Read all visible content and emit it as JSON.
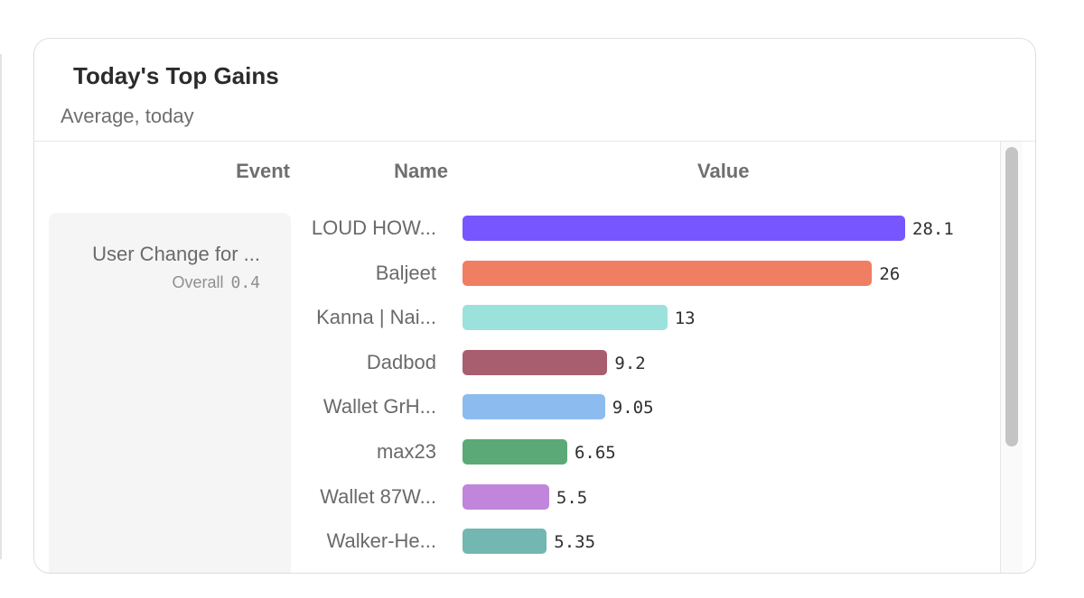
{
  "card": {
    "title": "Today's Top Gains",
    "subtitle": "Average, today"
  },
  "columns": {
    "event": "Event",
    "name": "Name",
    "value": "Value"
  },
  "event": {
    "label": "User Change for ...",
    "overall_label": "Overall",
    "overall_value": "0.4"
  },
  "chart_data": {
    "type": "bar",
    "orientation": "horizontal",
    "title": "Today's Top Gains",
    "subtitle": "Average, today",
    "categories": [
      "LOUD HOW...",
      "Baljeet",
      "Kanna | Nai...",
      "Dadbod",
      "Wallet GrH...",
      "max23",
      "Wallet 87W...",
      "Walker-He..."
    ],
    "values": [
      28.1,
      26,
      13,
      9.2,
      9.05,
      6.65,
      5.5,
      5.35
    ],
    "value_labels": [
      "28.1",
      "26",
      "13",
      "9.2",
      "9.05",
      "6.65",
      "5.5",
      "5.35"
    ],
    "colors": [
      "#7856ff",
      "#f07e62",
      "#9ce2dc",
      "#a85e6f",
      "#8cbcef",
      "#5ba977",
      "#c185db",
      "#72b7b1"
    ],
    "xlim": [
      0,
      28.1
    ],
    "xlabel": "Value",
    "ylabel": "Name"
  }
}
